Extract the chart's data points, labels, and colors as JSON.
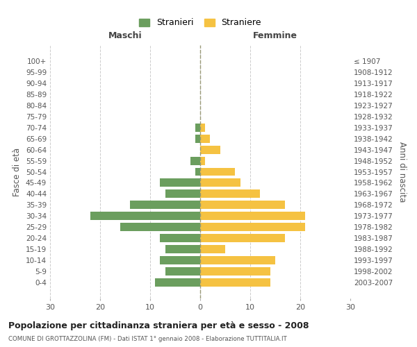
{
  "age_groups": [
    "0-4",
    "5-9",
    "10-14",
    "15-19",
    "20-24",
    "25-29",
    "30-34",
    "35-39",
    "40-44",
    "45-49",
    "50-54",
    "55-59",
    "60-64",
    "65-69",
    "70-74",
    "75-79",
    "80-84",
    "85-89",
    "90-94",
    "95-99",
    "100+"
  ],
  "birth_years": [
    "2003-2007",
    "1998-2002",
    "1993-1997",
    "1988-1992",
    "1983-1987",
    "1978-1982",
    "1973-1977",
    "1968-1972",
    "1963-1967",
    "1958-1962",
    "1953-1957",
    "1948-1952",
    "1943-1947",
    "1938-1942",
    "1933-1937",
    "1928-1932",
    "1923-1927",
    "1918-1922",
    "1913-1917",
    "1908-1912",
    "≤ 1907"
  ],
  "maschi": [
    9,
    7,
    8,
    7,
    8,
    16,
    22,
    14,
    7,
    8,
    1,
    2,
    0,
    1,
    1,
    0,
    0,
    0,
    0,
    0,
    0
  ],
  "femmine": [
    14,
    14,
    15,
    5,
    17,
    21,
    21,
    17,
    12,
    8,
    7,
    1,
    4,
    2,
    1,
    0,
    0,
    0,
    0,
    0,
    0
  ],
  "color_maschi": "#6b9e5e",
  "color_femmine": "#f5c242",
  "title": "Popolazione per cittadinanza straniera per età e sesso - 2008",
  "subtitle": "COMUNE DI GROTTAZZOLINA (FM) - Dati ISTAT 1° gennaio 2008 - Elaborazione TUTTITALIA.IT",
  "ylabel_left": "Fasce di età",
  "ylabel_right": "Anni di nascita",
  "xlabel_left": "Maschi",
  "xlabel_right": "Femmine",
  "legend_maschi": "Stranieri",
  "legend_femmine": "Straniere",
  "xlim": 30,
  "background_color": "#ffffff",
  "grid_color": "#cccccc"
}
